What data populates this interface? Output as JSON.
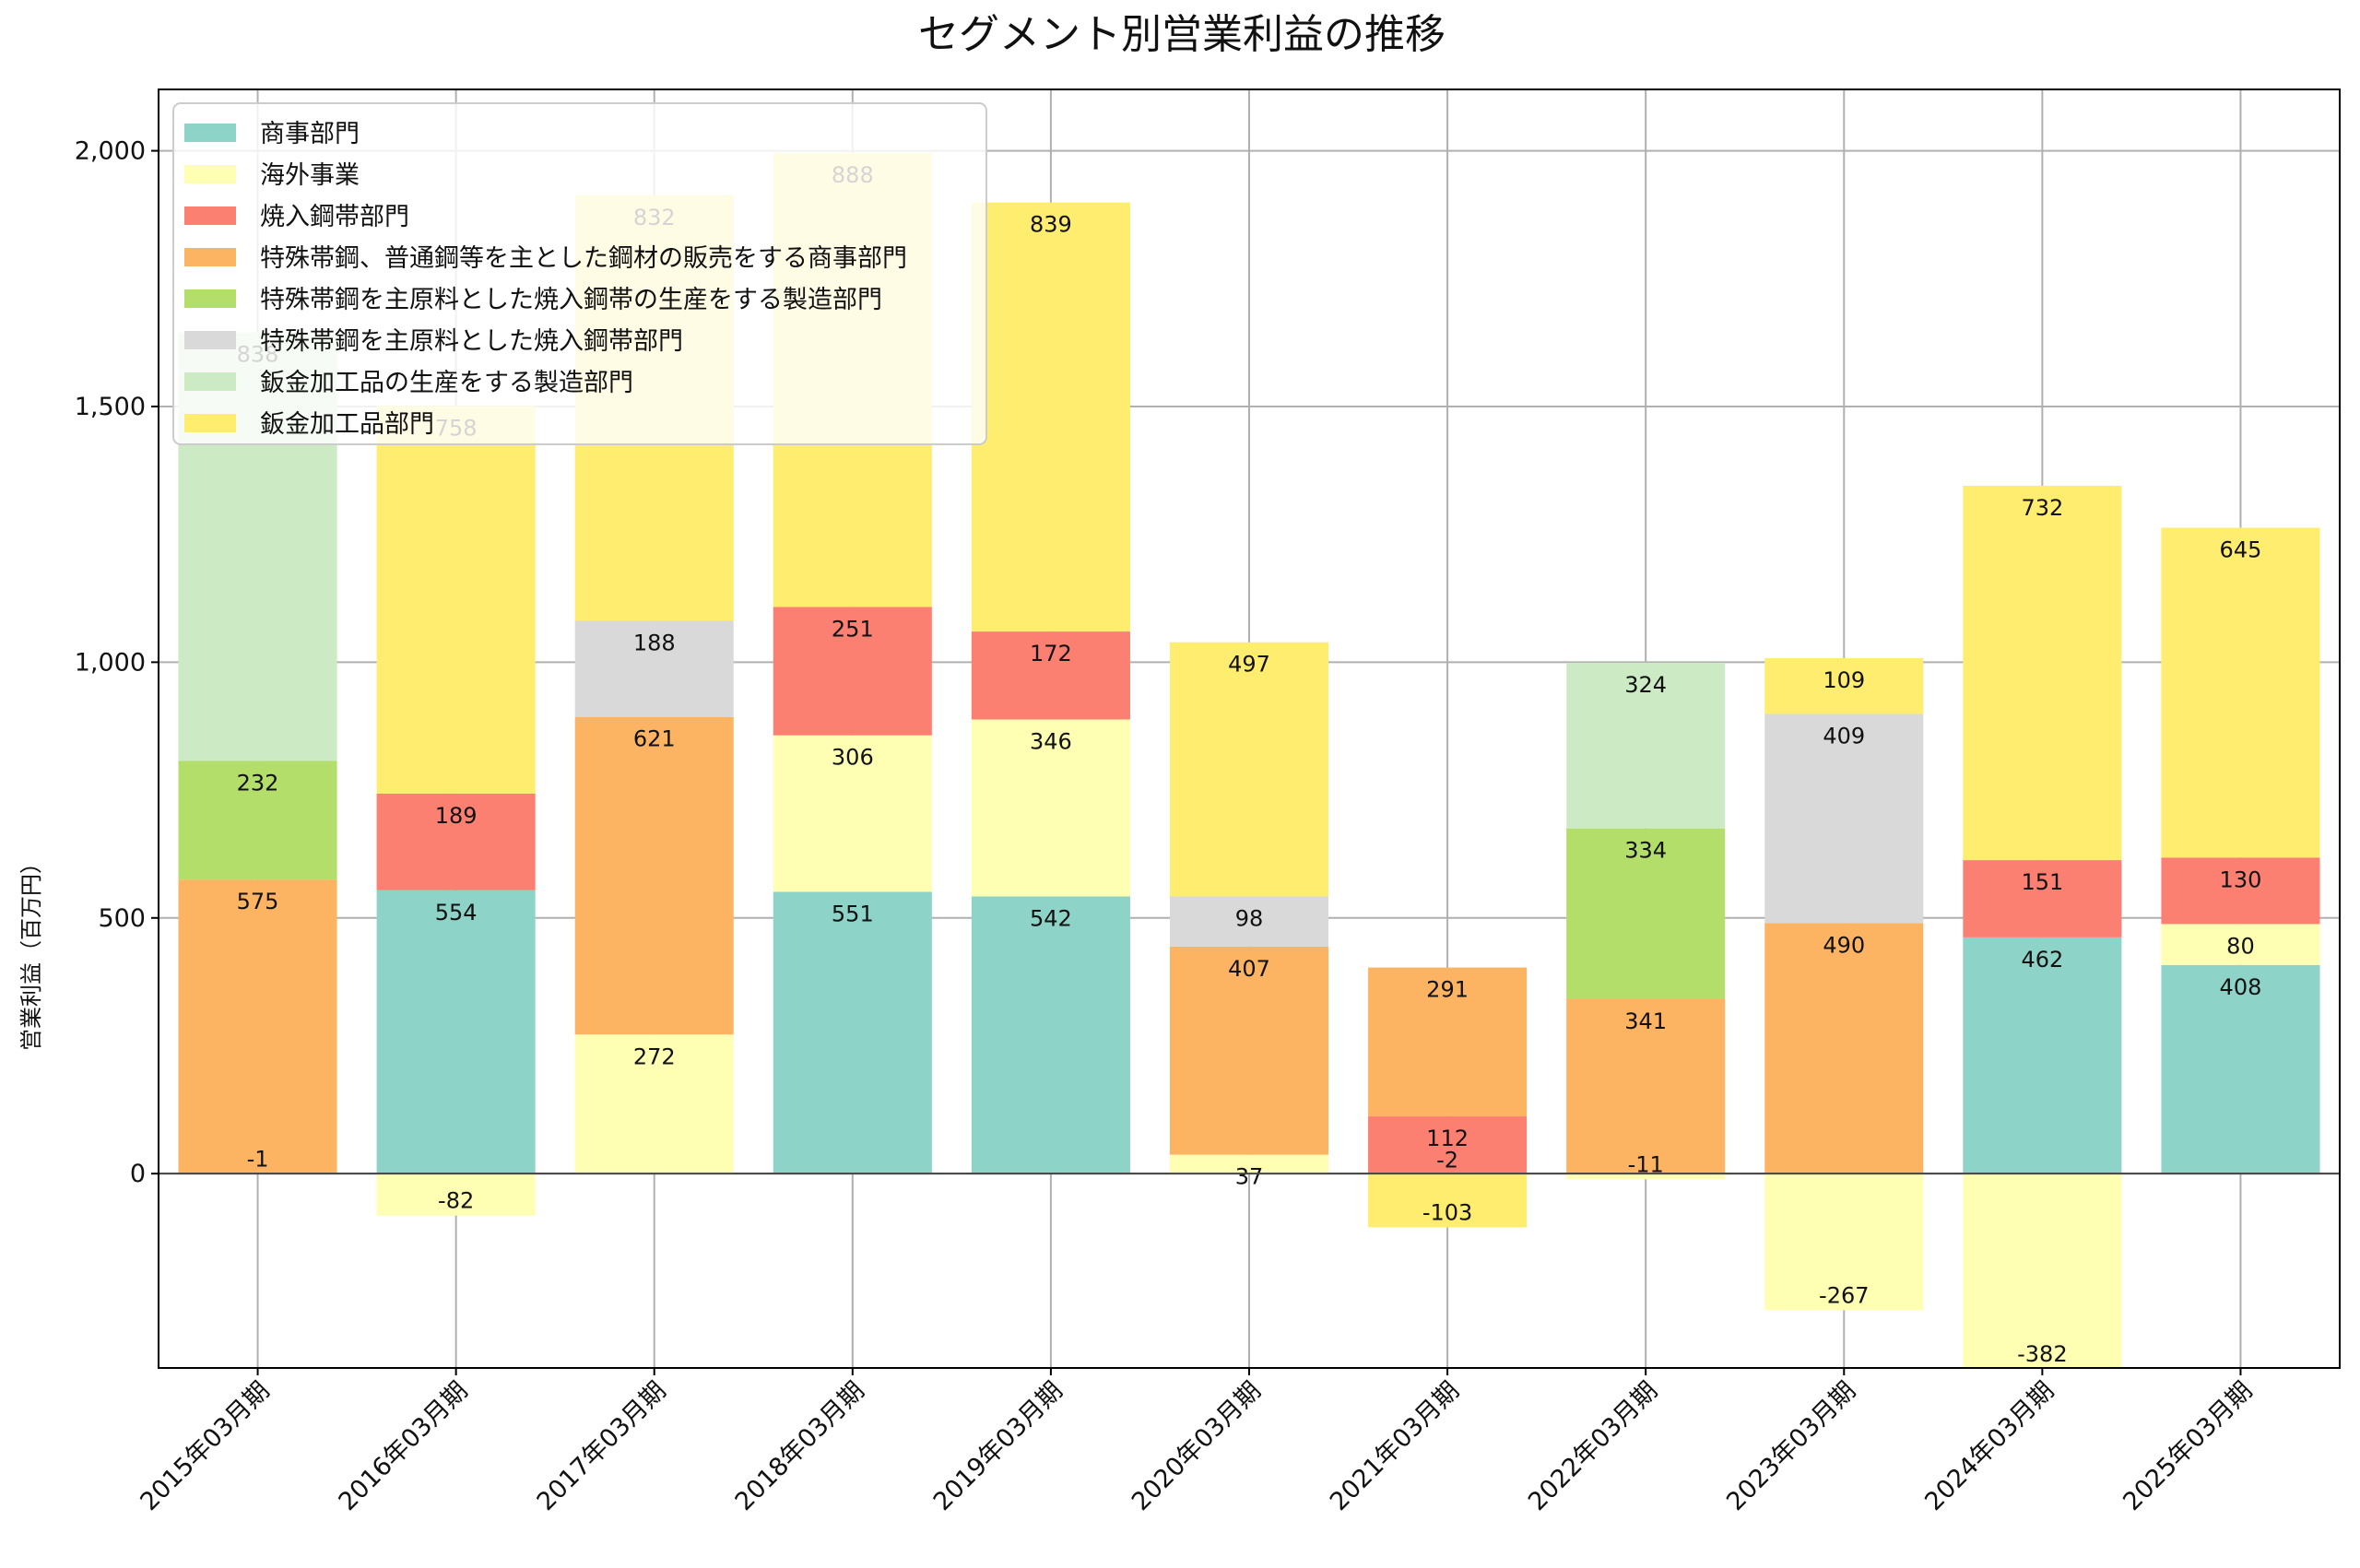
{
  "chart_data": {
    "type": "bar",
    "stacked": true,
    "title": "セグメント別営業利益の推移",
    "xlabel": "",
    "ylabel": "営業利益（百万円）",
    "ylim": [
      -380,
      2120
    ],
    "yticks": [
      0,
      500,
      1000,
      1500,
      2000
    ],
    "ytick_labels": [
      "0",
      "500",
      "1,000",
      "1,500",
      "2,000"
    ],
    "grid": true,
    "legend_position": "top-left",
    "categories": [
      "2015年03月期",
      "2016年03月期",
      "2017年03月期",
      "2018年03月期",
      "2019年03月期",
      "2020年03月期",
      "2021年03月期",
      "2022年03月期",
      "2023年03月期",
      "2024年03月期",
      "2025年03月期"
    ],
    "series": [
      {
        "name": "商事部門",
        "color": "#8dd3c7",
        "values": [
          null,
          554,
          null,
          551,
          542,
          null,
          null,
          null,
          null,
          462,
          408
        ]
      },
      {
        "name": "海外事業",
        "color": "#ffffb3",
        "values": [
          -1,
          -82,
          272,
          306,
          346,
          37,
          -2,
          -11,
          -267,
          -382,
          80
        ]
      },
      {
        "name": "焼入鋼帯部門",
        "color": "#fb8072",
        "values": [
          null,
          189,
          null,
          251,
          172,
          null,
          112,
          null,
          null,
          151,
          130
        ]
      },
      {
        "name": "特殊帯鋼、普通鋼等を主とした鋼材の販売をする商事部門",
        "color": "#fdb462",
        "values": [
          575,
          null,
          621,
          null,
          null,
          407,
          291,
          341,
          490,
          null,
          null
        ]
      },
      {
        "name": "特殊帯鋼を主原料とした焼入鋼帯の生産をする製造部門",
        "color": "#b3de69",
        "values": [
          232,
          null,
          null,
          null,
          null,
          null,
          null,
          334,
          null,
          null,
          null
        ]
      },
      {
        "name": "特殊帯鋼を主原料とした焼入鋼帯部門",
        "color": "#d9d9d9",
        "values": [
          null,
          null,
          188,
          null,
          null,
          98,
          null,
          null,
          409,
          null,
          null
        ]
      },
      {
        "name": "鈑金加工品の生産をする製造部門",
        "color": "#ccebc5",
        "values": [
          838,
          null,
          null,
          null,
          null,
          null,
          null,
          324,
          null,
          null,
          null
        ]
      },
      {
        "name": "鈑金加工品部門",
        "color": "#ffed6f",
        "values": [
          null,
          758,
          832,
          888,
          839,
          497,
          -103,
          null,
          109,
          732,
          645
        ]
      }
    ]
  }
}
